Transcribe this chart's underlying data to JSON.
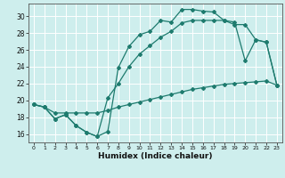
{
  "xlabel": "Humidex (Indice chaleur)",
  "bg_color": "#ceeeed",
  "line_color": "#1e7b6e",
  "grid_color": "#b8e0de",
  "xlim": [
    -0.5,
    23.5
  ],
  "ylim": [
    15.0,
    31.5
  ],
  "xticks": [
    0,
    1,
    2,
    3,
    4,
    5,
    6,
    7,
    8,
    9,
    10,
    11,
    12,
    13,
    14,
    15,
    16,
    17,
    18,
    19,
    20,
    21,
    22,
    23
  ],
  "yticks": [
    16,
    18,
    20,
    22,
    24,
    26,
    28,
    30
  ],
  "line1_x": [
    0,
    1,
    2,
    3,
    4,
    5,
    6,
    7,
    8,
    9,
    10,
    11,
    12,
    13,
    14,
    15,
    16,
    17,
    18,
    19,
    20,
    21,
    22,
    23
  ],
  "line1_y": [
    19.5,
    19.2,
    17.8,
    18.3,
    17.0,
    16.2,
    15.7,
    16.3,
    23.9,
    26.4,
    27.8,
    28.2,
    29.5,
    29.3,
    30.8,
    30.8,
    30.6,
    30.5,
    29.5,
    29.3,
    24.7,
    27.2,
    26.9,
    21.8
  ],
  "line2_x": [
    0,
    1,
    2,
    3,
    4,
    5,
    6,
    7,
    8,
    9,
    10,
    11,
    12,
    13,
    14,
    15,
    16,
    17,
    18,
    19,
    20,
    21,
    22,
    23
  ],
  "line2_y": [
    19.5,
    19.2,
    17.8,
    18.3,
    17.0,
    16.2,
    15.7,
    20.3,
    22.0,
    24.0,
    25.5,
    26.5,
    27.5,
    28.2,
    29.2,
    29.5,
    29.5,
    29.5,
    29.5,
    29.0,
    29.0,
    27.2,
    26.9,
    21.8
  ],
  "line3_x": [
    0,
    1,
    2,
    3,
    4,
    5,
    6,
    7,
    8,
    9,
    10,
    11,
    12,
    13,
    14,
    15,
    16,
    17,
    18,
    19,
    20,
    21,
    22,
    23
  ],
  "line3_y": [
    19.5,
    19.2,
    18.5,
    18.5,
    18.5,
    18.5,
    18.5,
    18.8,
    19.2,
    19.5,
    19.8,
    20.1,
    20.4,
    20.7,
    21.0,
    21.3,
    21.5,
    21.7,
    21.9,
    22.0,
    22.1,
    22.2,
    22.3,
    21.8
  ]
}
